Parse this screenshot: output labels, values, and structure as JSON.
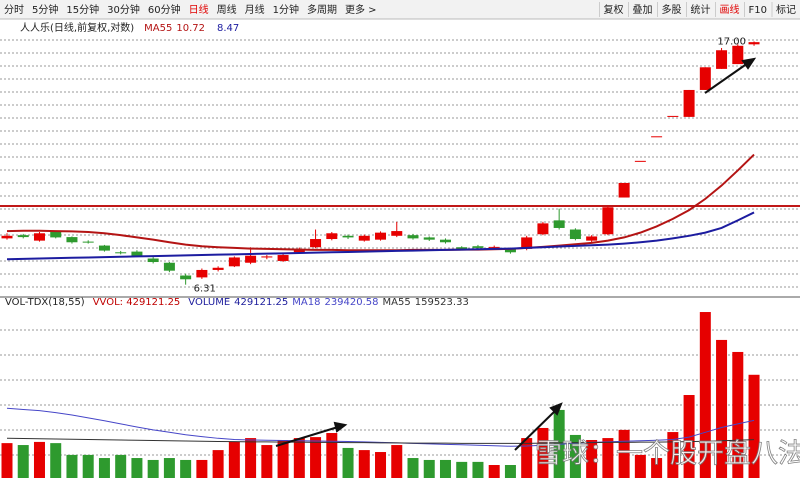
{
  "toolbar": {
    "left": [
      "分时",
      "5分钟",
      "15分钟",
      "30分钟",
      "60分钟",
      "日线",
      "周线",
      "月线",
      "1分钟",
      "多周期",
      "更多 >"
    ],
    "right": [
      "复权",
      "叠加",
      "多股",
      "统计",
      "画线",
      "F10",
      "标记"
    ],
    "active_left": 5,
    "active_right": 4
  },
  "chart_data": [
    {
      "type": "candlestick",
      "title": "人人乐(日线,前复权,对数)",
      "log": true,
      "ylim": [
        6.05,
        18.4
      ],
      "up_color": "#e60000",
      "down_color": "#2e9a2e",
      "open": [
        7.62,
        7.72,
        7.55,
        7.82,
        7.66,
        7.52,
        7.4,
        7.2,
        7.22,
        7.02,
        6.9,
        6.55,
        6.5,
        6.7,
        6.8,
        6.9,
        7.05,
        6.95,
        7.2,
        7.35,
        7.6,
        7.7,
        7.55,
        7.58,
        7.7,
        7.72,
        7.65,
        7.58,
        7.35,
        7.38,
        7.35,
        7.3,
        7.3,
        7.75,
        8.2,
        7.9,
        7.55,
        7.75,
        9.0,
        10.45,
        11.55,
        12.55,
        12.5,
        13.95,
        15.2,
        15.5,
        16.8
      ],
      "close": [
        7.7,
        7.66,
        7.78,
        7.65,
        7.5,
        7.5,
        7.25,
        7.18,
        7.1,
        6.92,
        6.68,
        6.45,
        6.7,
        6.76,
        7.05,
        7.1,
        7.08,
        7.12,
        7.3,
        7.6,
        7.78,
        7.65,
        7.7,
        7.8,
        7.85,
        7.62,
        7.58,
        7.5,
        7.3,
        7.33,
        7.36,
        7.2,
        7.65,
        8.1,
        7.95,
        7.6,
        7.68,
        8.65,
        9.55,
        10.45,
        11.55,
        12.55,
        13.95,
        15.3,
        16.4,
        16.7,
        16.95
      ],
      "high": [
        7.78,
        7.76,
        7.82,
        7.85,
        7.68,
        7.56,
        7.42,
        7.24,
        7.26,
        7.06,
        6.92,
        6.6,
        6.74,
        6.8,
        7.08,
        7.35,
        7.12,
        7.15,
        7.34,
        7.9,
        7.82,
        7.74,
        7.74,
        7.84,
        8.15,
        7.76,
        7.68,
        7.62,
        7.38,
        7.42,
        7.4,
        7.34,
        7.7,
        8.15,
        8.6,
        7.94,
        7.72,
        8.68,
        9.55,
        10.45,
        11.55,
        12.55,
        13.95,
        15.3,
        16.55,
        16.8,
        17.0
      ],
      "low": [
        7.58,
        7.62,
        7.52,
        7.62,
        7.46,
        7.46,
        7.22,
        7.14,
        7.06,
        6.88,
        6.64,
        6.31,
        6.46,
        6.66,
        6.78,
        6.86,
        7.0,
        6.92,
        7.16,
        7.32,
        7.56,
        7.6,
        7.52,
        7.55,
        7.66,
        7.58,
        7.54,
        7.46,
        7.26,
        7.3,
        7.3,
        7.16,
        7.26,
        7.72,
        7.9,
        7.56,
        7.5,
        7.72,
        9.0,
        10.45,
        11.55,
        12.55,
        12.5,
        13.95,
        15.2,
        15.5,
        16.7
      ],
      "lines": [
        {
          "name": "MA55",
          "color": "#b41414",
          "value_label": "10.72",
          "values": [
            7.85,
            7.86,
            7.86,
            7.85,
            7.84,
            7.82,
            7.78,
            7.72,
            7.65,
            7.58,
            7.5,
            7.43,
            7.38,
            7.35,
            7.33,
            7.31,
            7.3,
            7.29,
            7.28,
            7.27,
            7.27,
            7.26,
            7.26,
            7.26,
            7.26,
            7.27,
            7.27,
            7.27,
            7.28,
            7.28,
            7.29,
            7.3,
            7.33,
            7.36,
            7.4,
            7.44,
            7.48,
            7.55,
            7.65,
            7.8,
            8.0,
            8.25,
            8.55,
            8.95,
            9.45,
            10.05,
            10.72
          ]
        },
        {
          "color": "#1c1ca0",
          "value_label": "8.47",
          "values": [
            7.0,
            7.01,
            7.02,
            7.03,
            7.04,
            7.05,
            7.06,
            7.07,
            7.08,
            7.09,
            7.1,
            7.11,
            7.12,
            7.13,
            7.14,
            7.15,
            7.16,
            7.17,
            7.18,
            7.19,
            7.2,
            7.21,
            7.22,
            7.23,
            7.24,
            7.25,
            7.26,
            7.27,
            7.28,
            7.29,
            7.3,
            7.31,
            7.33,
            7.35,
            7.37,
            7.39,
            7.41,
            7.43,
            7.46,
            7.5,
            7.55,
            7.62,
            7.7,
            7.8,
            7.95,
            8.2,
            8.47
          ]
        }
      ],
      "annotations": [
        {
          "value": 17,
          "label": "17.00"
        },
        {
          "value": 6.31,
          "label": "6.31"
        }
      ]
    },
    {
      "type": "bar",
      "title": "VOL-TDX(18,55)",
      "legend": [
        "VVOL: 429121.25"
      ],
      "name": "VOLUME",
      "value_label": "429121.25",
      "ylim": [
        0,
        740000
      ],
      "values": [
        145000,
        137000,
        150000,
        145000,
        96000,
        96000,
        83000,
        96000,
        83000,
        75000,
        83000,
        75000,
        75000,
        116000,
        150000,
        166000,
        137000,
        158000,
        166000,
        170000,
        187000,
        125000,
        116000,
        108000,
        137000,
        83000,
        75000,
        75000,
        67000,
        67000,
        54000,
        54000,
        166000,
        208000,
        283000,
        179000,
        158000,
        166000,
        200000,
        96000,
        83000,
        191000,
        345000,
        690000,
        574000,
        524000,
        429121.25
      ],
      "lines": [
        {
          "name": "MA18",
          "color": "#4646c8",
          "value_label": "239420.58",
          "values": [
            290000,
            285000,
            280000,
            272000,
            262000,
            250000,
            238000,
            225000,
            212000,
            200000,
            190000,
            180000,
            172000,
            165000,
            160000,
            158000,
            157000,
            156000,
            155000,
            154000,
            153000,
            152000,
            150000,
            148000,
            146000,
            144000,
            142000,
            140000,
            138000,
            136000,
            134000,
            132000,
            133000,
            136000,
            140000,
            145000,
            148000,
            150000,
            153000,
            155000,
            157000,
            160000,
            170000,
            190000,
            210000,
            225000,
            239420.58
          ]
        },
        {
          "name": "MA55",
          "color": "#333333",
          "value_label": "159523.33",
          "values": [
            165000,
            164000,
            163000,
            162000,
            161000,
            160000,
            159000,
            158000,
            157000,
            156000,
            155000,
            154000,
            153000,
            152000,
            151000,
            150000,
            150000,
            149000,
            149000,
            148000,
            148000,
            147000,
            147000,
            146000,
            146000,
            145000,
            145000,
            145000,
            144000,
            144000,
            144000,
            144000,
            144000,
            145000,
            146000,
            147000,
            147000,
            148000,
            148000,
            149000,
            149000,
            150000,
            151000,
            153000,
            155000,
            157000,
            159523.33
          ]
        }
      ]
    }
  ],
  "watermark": "雪球：一个股开盘八法"
}
